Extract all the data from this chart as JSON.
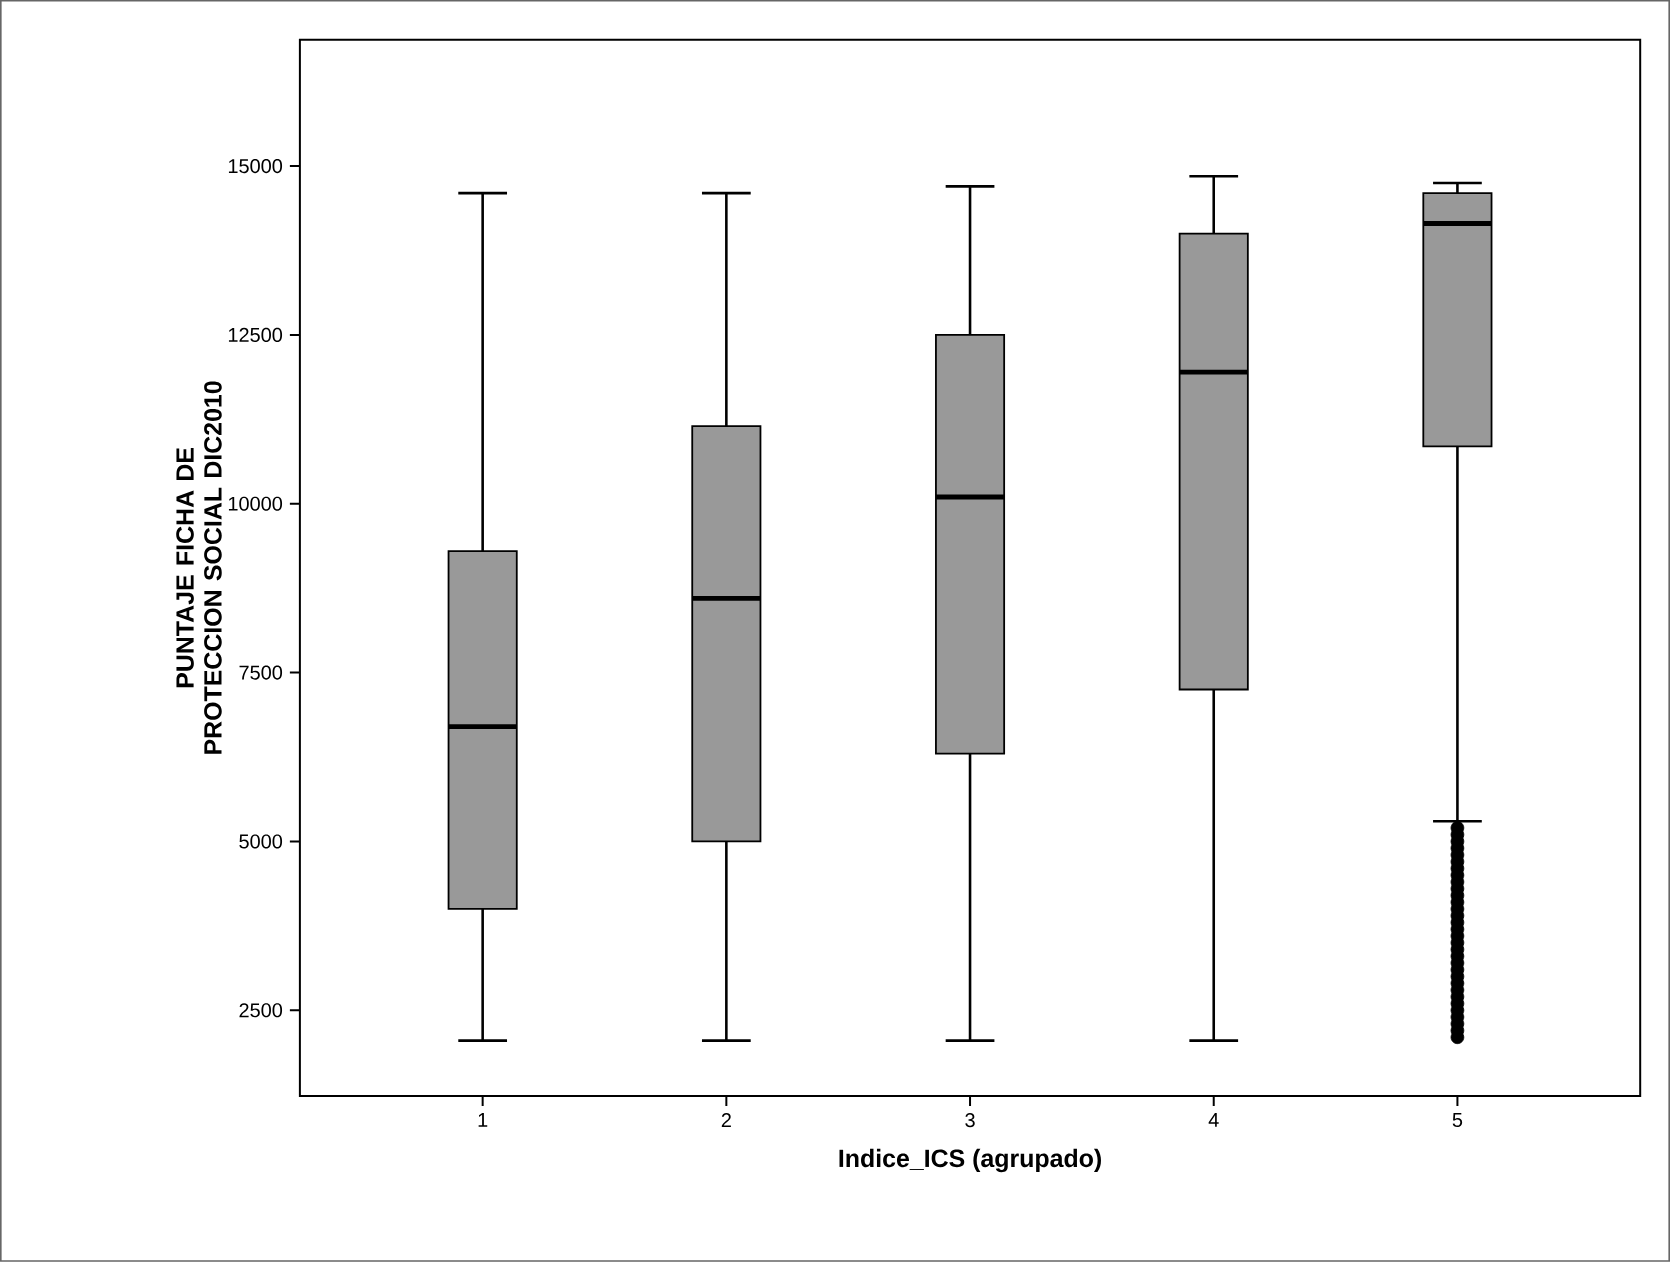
{
  "chart_data": {
    "type": "box",
    "xlabel": "Indice_ICS (agrupado)",
    "ylabel": "PUNTAJE FICHA DE PROTECCION SOCIAL DIC2010",
    "categories": [
      "1",
      "2",
      "3",
      "4",
      "5"
    ],
    "ylim": [
      1230,
      16870
    ],
    "yticks": [
      2500,
      5000,
      7500,
      10000,
      12500,
      15000
    ],
    "marker": "circle",
    "series": [
      {
        "color": "#999999",
        "boxes": [
          {
            "low": 2050,
            "q1": 4000,
            "median": 6700,
            "q3": 9300,
            "high": 14600
          },
          {
            "low": 2050,
            "q1": 5000,
            "median": 8600,
            "q3": 11150,
            "high": 14600
          },
          {
            "low": 2050,
            "q1": 6300,
            "median": 10100,
            "q3": 12500,
            "high": 14700
          },
          {
            "low": 2050,
            "q1": 7250,
            "median": 11950,
            "q3": 14000,
            "high": 14850
          },
          {
            "low": 5300,
            "q1": 10850,
            "median": 14150,
            "q3": 14600,
            "high": 14750,
            "outliers": [
              2100,
              2200,
              2300,
              2400,
              2500,
              2600,
              2700,
              2800,
              2900,
              3000,
              3100,
              3200,
              3300,
              3400,
              3500,
              3600,
              3700,
              3800,
              3900,
              4000,
              4100,
              4200,
              4300,
              4400,
              4500,
              4600,
              4700,
              4800,
              4900,
              5000,
              5100,
              5200
            ]
          }
        ]
      }
    ]
  }
}
